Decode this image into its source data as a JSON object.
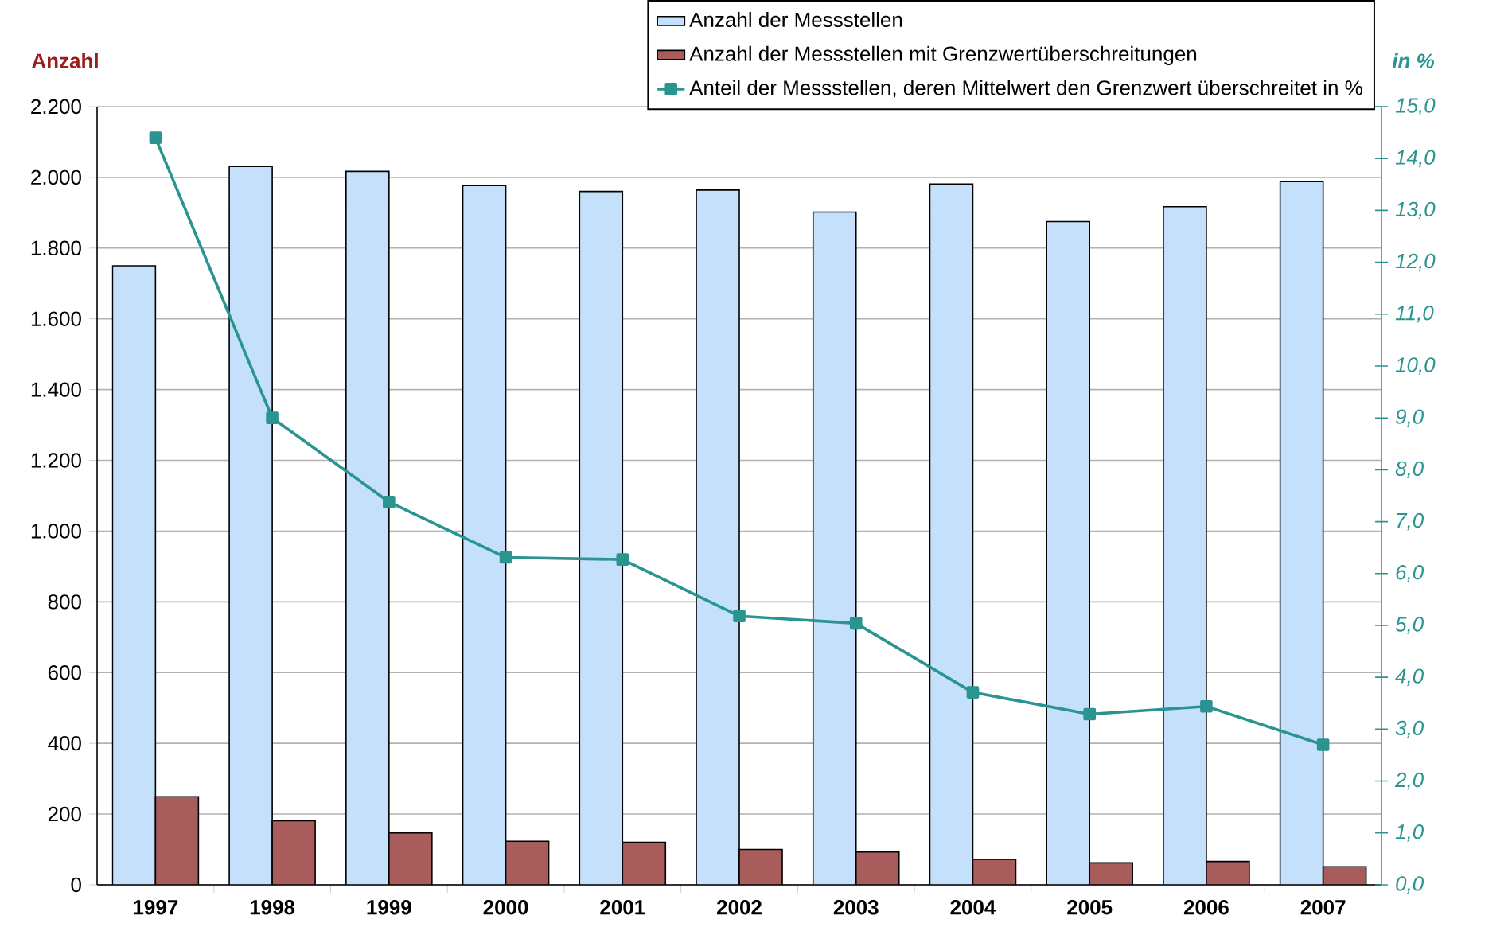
{
  "chart_data": {
    "type": "bar",
    "categories": [
      "1997",
      "1998",
      "1999",
      "2000",
      "2001",
      "2002",
      "2003",
      "2004",
      "2005",
      "2006",
      "2007"
    ],
    "series": [
      {
        "name": "Anzahl der Messstellen",
        "color": "#c5e0fb",
        "values": [
          1750,
          2031,
          2017,
          1977,
          1960,
          1964,
          1902,
          1981,
          1875,
          1917,
          1988
        ]
      },
      {
        "name": "Anzahl der Messstellen mit Grenzwertüberschreitungen",
        "color": "#a85c5c",
        "values": [
          249,
          181,
          147,
          123,
          120,
          100,
          93,
          72,
          62,
          66,
          51
        ]
      },
      {
        "name": "Anteil der Messstellen, deren Mittelwert den Grenzwert überschreitet in %",
        "type": "line",
        "axis": "y2",
        "marker": "square",
        "color": "#2a9490",
        "values": [
          14.4,
          9.0,
          7.38,
          6.31,
          6.27,
          5.18,
          5.04,
          3.71,
          3.29,
          3.44,
          2.7
        ]
      }
    ],
    "ylabel": "Anzahl",
    "y2label": "in %",
    "ylim": [
      0,
      2200
    ],
    "yticks": [
      {
        "value": 0,
        "label": "0"
      },
      {
        "value": 200,
        "label": "200"
      },
      {
        "value": 400,
        "label": "400"
      },
      {
        "value": 600,
        "label": "600"
      },
      {
        "value": 800,
        "label": "800"
      },
      {
        "value": 1000,
        "label": "1.000"
      },
      {
        "value": 1200,
        "label": "1.200"
      },
      {
        "value": 1400,
        "label": "1.400"
      },
      {
        "value": 1600,
        "label": "1.600"
      },
      {
        "value": 1800,
        "label": "1.800"
      },
      {
        "value": 2000,
        "label": "2.000"
      },
      {
        "value": 2200,
        "label": "2.200"
      }
    ],
    "y2lim": [
      0,
      15
    ],
    "y2ticks": [
      {
        "value": 0,
        "label": "0,0"
      },
      {
        "value": 1,
        "label": "1,0"
      },
      {
        "value": 2,
        "label": "2,0"
      },
      {
        "value": 3,
        "label": "3,0"
      },
      {
        "value": 4,
        "label": "4,0"
      },
      {
        "value": 5,
        "label": "5,0"
      },
      {
        "value": 6,
        "label": "6,0"
      },
      {
        "value": 7,
        "label": "7,0"
      },
      {
        "value": 8,
        "label": "8,0"
      },
      {
        "value": 9,
        "label": "9,0"
      },
      {
        "value": 10,
        "label": "10,0"
      },
      {
        "value": 11,
        "label": "11,0"
      },
      {
        "value": 12,
        "label": "12,0"
      },
      {
        "value": 13,
        "label": "13,0"
      },
      {
        "value": 14,
        "label": "14,0"
      },
      {
        "value": 15,
        "label": "15,0"
      }
    ],
    "grid": "y",
    "legend": "top right"
  }
}
